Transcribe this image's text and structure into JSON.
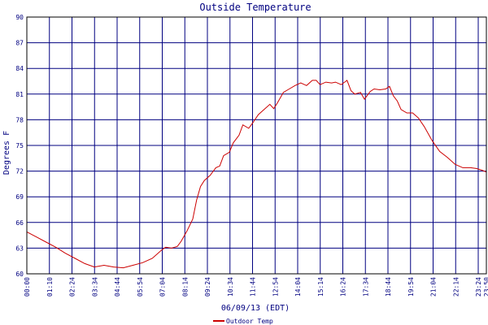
{
  "chart_data": {
    "type": "line",
    "title": "Outside Temperature",
    "ylabel": "Degrees F",
    "xlabel": "06/09/13 (EDT)",
    "ylim": [
      60,
      90
    ],
    "yticks": [
      60,
      63,
      66,
      69,
      72,
      75,
      78,
      81,
      84,
      87,
      90
    ],
    "xticks": [
      "00:00",
      "01:10",
      "02:24",
      "03:34",
      "04:44",
      "05:54",
      "07:04",
      "08:14",
      "09:24",
      "10:34",
      "11:44",
      "12:54",
      "14:04",
      "15:14",
      "16:24",
      "17:34",
      "18:44",
      "19:54",
      "21:04",
      "22:14",
      "23:24",
      "23:50"
    ],
    "grid": true,
    "legend_position": "bottom-left",
    "colors": {
      "series": "#cc0000",
      "grid": "#000080",
      "text": "#000080",
      "frame": "#000000"
    },
    "series": [
      {
        "name": "Outdoor Temp",
        "x_hours": [
          0,
          0.5,
          1,
          1.5,
          2,
          2.5,
          3,
          3.5,
          4,
          4.5,
          5,
          5.5,
          6,
          6.5,
          7,
          7.2,
          7.5,
          7.8,
          8,
          8.3,
          8.6,
          8.8,
          9,
          9.2,
          9.5,
          9.8,
          10,
          10.2,
          10.5,
          10.7,
          11,
          11.2,
          11.5,
          11.7,
          12,
          12.3,
          12.6,
          12.8,
          13,
          13.3,
          13.6,
          13.9,
          14.2,
          14.5,
          14.8,
          15,
          15.2,
          15.5,
          15.8,
          16,
          16.3,
          16.6,
          16.8,
          17,
          17.3,
          17.5,
          17.8,
          18,
          18.3,
          18.6,
          18.8,
          19,
          19.2,
          19.4,
          19.7,
          20,
          20.3,
          20.6,
          21,
          21.4,
          21.8,
          22.2,
          22.6,
          23,
          23.3,
          23.6,
          23.833
        ],
        "values": [
          64.9,
          64.3,
          63.7,
          63.1,
          62.4,
          61.8,
          61.2,
          60.8,
          61.0,
          60.8,
          60.7,
          61.0,
          61.3,
          61.8,
          62.8,
          63.1,
          63.0,
          63.2,
          63.8,
          65.0,
          66.4,
          68.6,
          70.2,
          70.9,
          71.5,
          72.4,
          72.6,
          73.8,
          74.2,
          75.3,
          76.2,
          77.4,
          77.0,
          77.6,
          78.6,
          79.2,
          79.8,
          79.3,
          80.0,
          81.2,
          81.6,
          82.0,
          82.3,
          82.0,
          82.6,
          82.6,
          82.1,
          82.4,
          82.3,
          82.4,
          82.1,
          82.6,
          81.4,
          81.0,
          81.2,
          80.4,
          81.3,
          81.6,
          81.5,
          81.6,
          81.9,
          80.8,
          80.2,
          79.2,
          78.8,
          78.8,
          78.2,
          77.2,
          75.6,
          74.3,
          73.6,
          72.8,
          72.4,
          72.4,
          72.3,
          72.1,
          71.9
        ]
      }
    ]
  }
}
